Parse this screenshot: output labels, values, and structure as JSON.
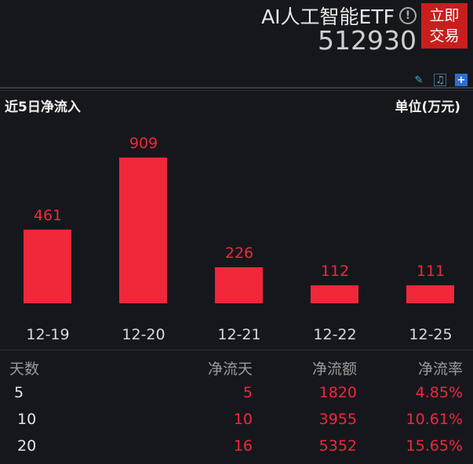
{
  "header": {
    "name": "AI人工智能ETF",
    "code": "512930",
    "trade_button": [
      "立即",
      "交易"
    ],
    "info_icon": "info-icon"
  },
  "toolbar": {
    "icons": [
      "pencil-icon",
      "bell-icon",
      "plus-icon"
    ]
  },
  "section": {
    "title": "近5日净流入",
    "unit": "单位(万元)"
  },
  "colors": {
    "bar": "#f0283a",
    "trade": "#c81e1e"
  },
  "chart_data": {
    "type": "bar",
    "categories": [
      "12-19",
      "12-20",
      "12-21",
      "12-22",
      "12-25"
    ],
    "values": [
      461,
      909,
      226,
      112,
      111
    ],
    "labels": [
      "461",
      "909",
      "226",
      "112",
      "111"
    ]
  },
  "table": {
    "headers": [
      "天数",
      "净流天",
      "净流额",
      "净流率"
    ],
    "rows": [
      [
        "5",
        "5",
        "1820",
        "4.85%"
      ],
      [
        "10",
        "10",
        "3955",
        "10.61%"
      ],
      [
        "20",
        "16",
        "5352",
        "15.65%"
      ]
    ]
  }
}
